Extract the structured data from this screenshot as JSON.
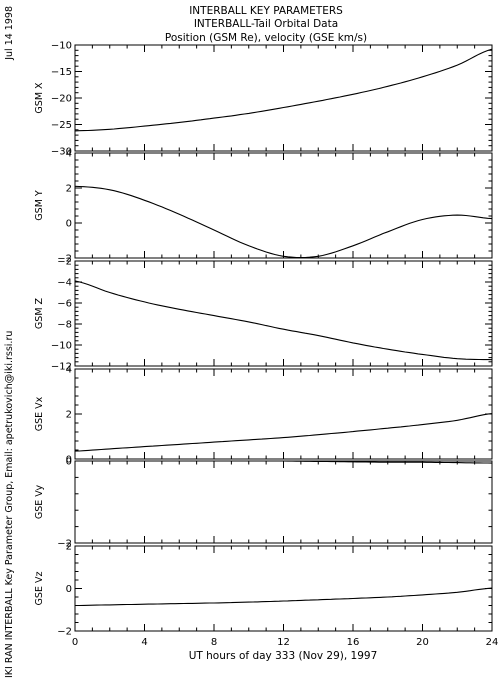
{
  "side_labels": {
    "date": "Jul 14 1998",
    "credit": "IKI RAN INTERBALL Key Parameter Group, Email: apetrukovich@iki.rssi.ru"
  },
  "chart_data": {
    "type": "line",
    "title": [
      "INTERBALL KEY PARAMETERS",
      "INTERBALL-Tail Orbital Data",
      "Position (GSM Re), velocity (GSE km/s)"
    ],
    "xlabel": "UT hours of day 333 (Nov 29), 1997",
    "xlim": [
      0,
      24
    ],
    "xticks": [
      0,
      4,
      8,
      12,
      16,
      20,
      24
    ],
    "grid": false,
    "panels": [
      {
        "ylabel": "GSM X",
        "ylim": [
          -30,
          -10
        ],
        "yticks": [
          -30,
          -25,
          -20,
          -15,
          -10
        ],
        "x": [
          0,
          2,
          4,
          6,
          8,
          10,
          12,
          14,
          16,
          18,
          20,
          22,
          24
        ],
        "values": [
          -26.2,
          -25.9,
          -25.3,
          -24.6,
          -23.8,
          -22.9,
          -21.8,
          -20.6,
          -19.3,
          -17.8,
          -16.0,
          -13.8,
          -10.8
        ]
      },
      {
        "ylabel": "GSM Y",
        "ylim": [
          -2,
          4
        ],
        "yticks": [
          -2,
          0,
          2,
          4
        ],
        "x": [
          0,
          2,
          4,
          6,
          8,
          10,
          12,
          14,
          16,
          18,
          20,
          22,
          24
        ],
        "values": [
          2.1,
          1.9,
          1.3,
          0.5,
          -0.4,
          -1.3,
          -1.9,
          -1.9,
          -1.3,
          -0.5,
          0.2,
          0.45,
          0.25
        ]
      },
      {
        "ylabel": "GSM Z",
        "ylim": [
          -12,
          -2
        ],
        "yticks": [
          -12,
          -10,
          -8,
          -6,
          -4,
          -2
        ],
        "x": [
          0,
          2,
          4,
          6,
          8,
          10,
          12,
          14,
          16,
          18,
          20,
          22,
          24
        ],
        "values": [
          -3.9,
          -5.0,
          -5.9,
          -6.6,
          -7.2,
          -7.8,
          -8.5,
          -9.1,
          -9.8,
          -10.4,
          -10.9,
          -11.3,
          -11.4
        ]
      },
      {
        "ylabel": "GSE Vx",
        "ylim": [
          0,
          4
        ],
        "yticks": [
          0,
          2,
          4
        ],
        "x": [
          0,
          2,
          4,
          6,
          8,
          10,
          12,
          14,
          16,
          18,
          20,
          22,
          24
        ],
        "values": [
          0.35,
          0.45,
          0.55,
          0.65,
          0.75,
          0.85,
          0.95,
          1.08,
          1.22,
          1.37,
          1.53,
          1.72,
          2.02
        ]
      },
      {
        "ylabel": "GSE Vy",
        "ylim": [
          -2,
          0
        ],
        "yticks": [
          -2,
          0
        ],
        "x": [
          0,
          2,
          4,
          6,
          8,
          10,
          12,
          14,
          16,
          18,
          20,
          22,
          24
        ],
        "values": [
          0.05,
          0.04,
          0.03,
          0.02,
          0.02,
          0.01,
          0.0,
          -0.01,
          -0.02,
          -0.03,
          -0.03,
          -0.04,
          -0.05
        ]
      },
      {
        "ylabel": "GSE Vz",
        "ylim": [
          -2,
          2
        ],
        "yticks": [
          -2,
          0,
          2
        ],
        "x": [
          0,
          2,
          4,
          6,
          8,
          10,
          12,
          14,
          16,
          18,
          20,
          22,
          24
        ],
        "values": [
          -0.8,
          -0.77,
          -0.74,
          -0.71,
          -0.68,
          -0.64,
          -0.59,
          -0.53,
          -0.47,
          -0.4,
          -0.3,
          -0.18,
          0.02
        ]
      }
    ]
  }
}
